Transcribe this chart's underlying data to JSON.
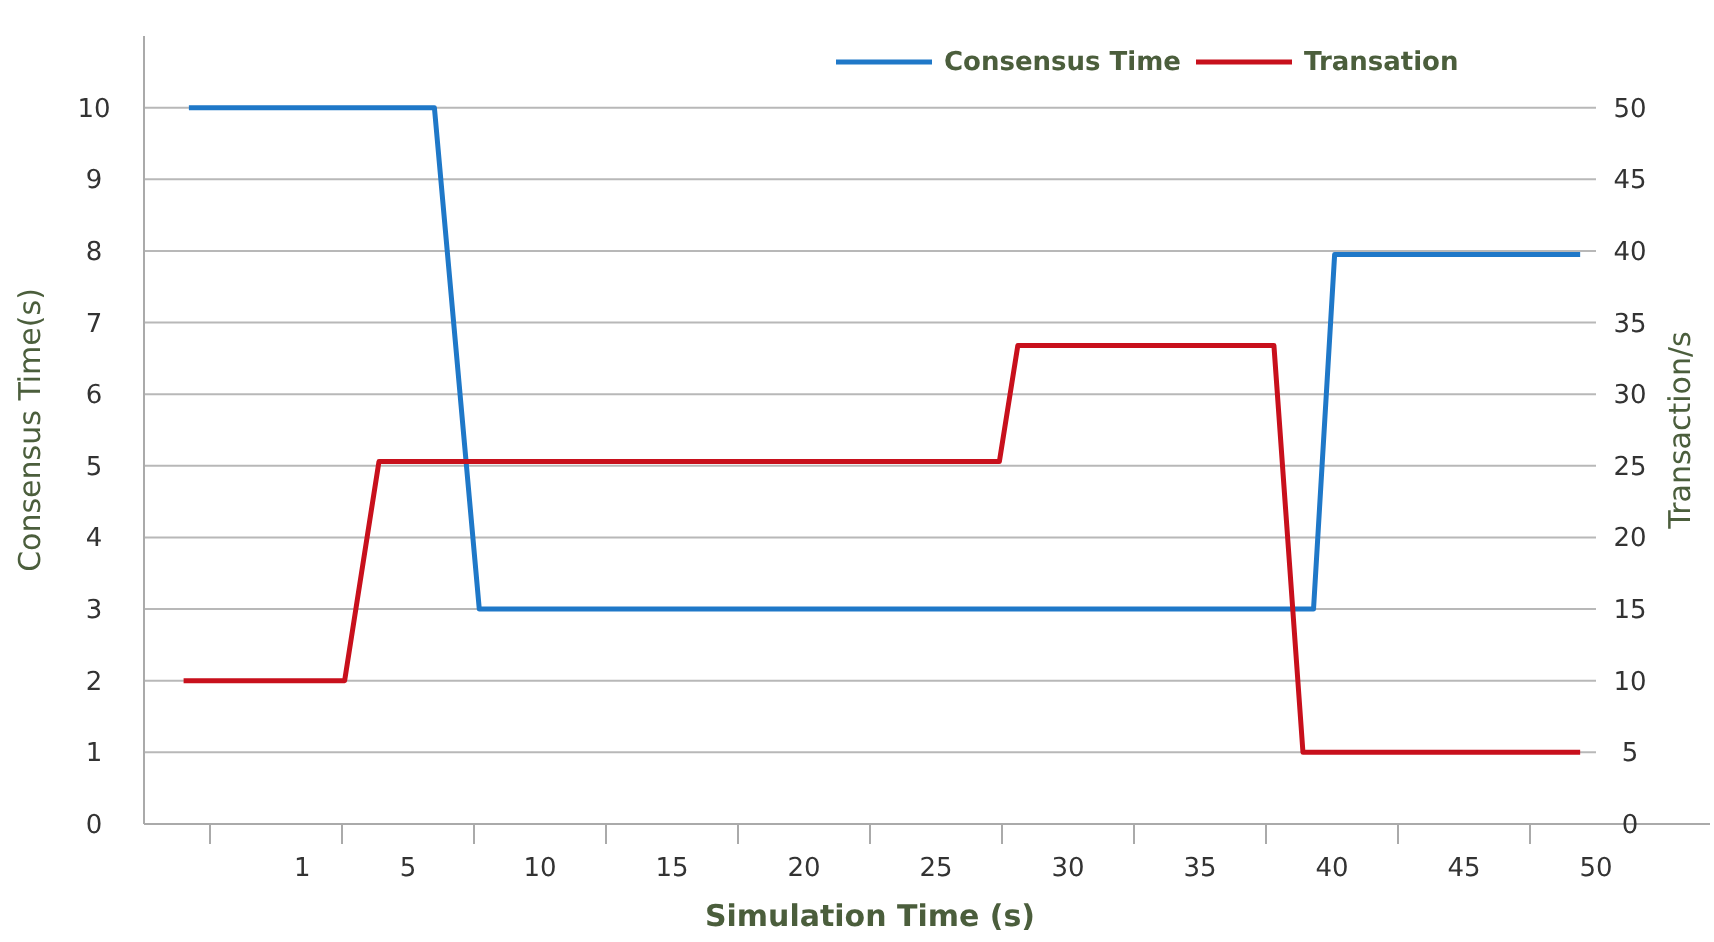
{
  "chart_data": {
    "type": "line",
    "xlabel": "Simulation Time (s)",
    "ylabel": "Consensus Time(s)",
    "y2label": "Transaction/s",
    "xlim": [
      -5,
      50
    ],
    "xticks": [
      {
        "value": -2.5,
        "label": null
      },
      1,
      {
        "value": 2.5,
        "label": null
      },
      5,
      {
        "value": 7.5,
        "label": null
      },
      10,
      {
        "value": 12.5,
        "label": null
      },
      15,
      {
        "value": 17.5,
        "label": null
      },
      20,
      {
        "value": 22.5,
        "label": null
      },
      25,
      {
        "value": 27.5,
        "label": null
      },
      30,
      {
        "value": 32.5,
        "label": null
      },
      35,
      {
        "value": 37.5,
        "label": null
      },
      40,
      {
        "value": 42.5,
        "label": null
      },
      45,
      {
        "value": 47.5,
        "label": null
      },
      50
    ],
    "ylim": [
      0,
      11
    ],
    "yticks": [
      0,
      1,
      2,
      3,
      4,
      5,
      6,
      7,
      8,
      9,
      10
    ],
    "y2lim": [
      0,
      55
    ],
    "y2ticks": [
      0,
      5,
      10,
      15,
      20,
      25,
      30,
      35,
      40,
      45,
      50
    ],
    "grid": "y",
    "legend": "top right",
    "marker": "none",
    "line_style": "solid",
    "series": [
      {
        "name": "Consensus Time",
        "color": "#1f78c8",
        "x": [
          -3.3,
          6.0,
          7.7,
          39.3,
          40.1,
          49.4
        ],
        "values": [
          10,
          10,
          3,
          3,
          7.95,
          7.95
        ]
      },
      {
        "name": "Transation",
        "color": "#c8101c",
        "axis": "y2",
        "x": [
          -3.5,
          2.6,
          3.9,
          27.4,
          28.1,
          37.8,
          38.9,
          49.4
        ],
        "values": [
          10,
          10,
          25.3,
          25.3,
          33.4,
          33.4,
          5,
          5
        ]
      }
    ]
  }
}
